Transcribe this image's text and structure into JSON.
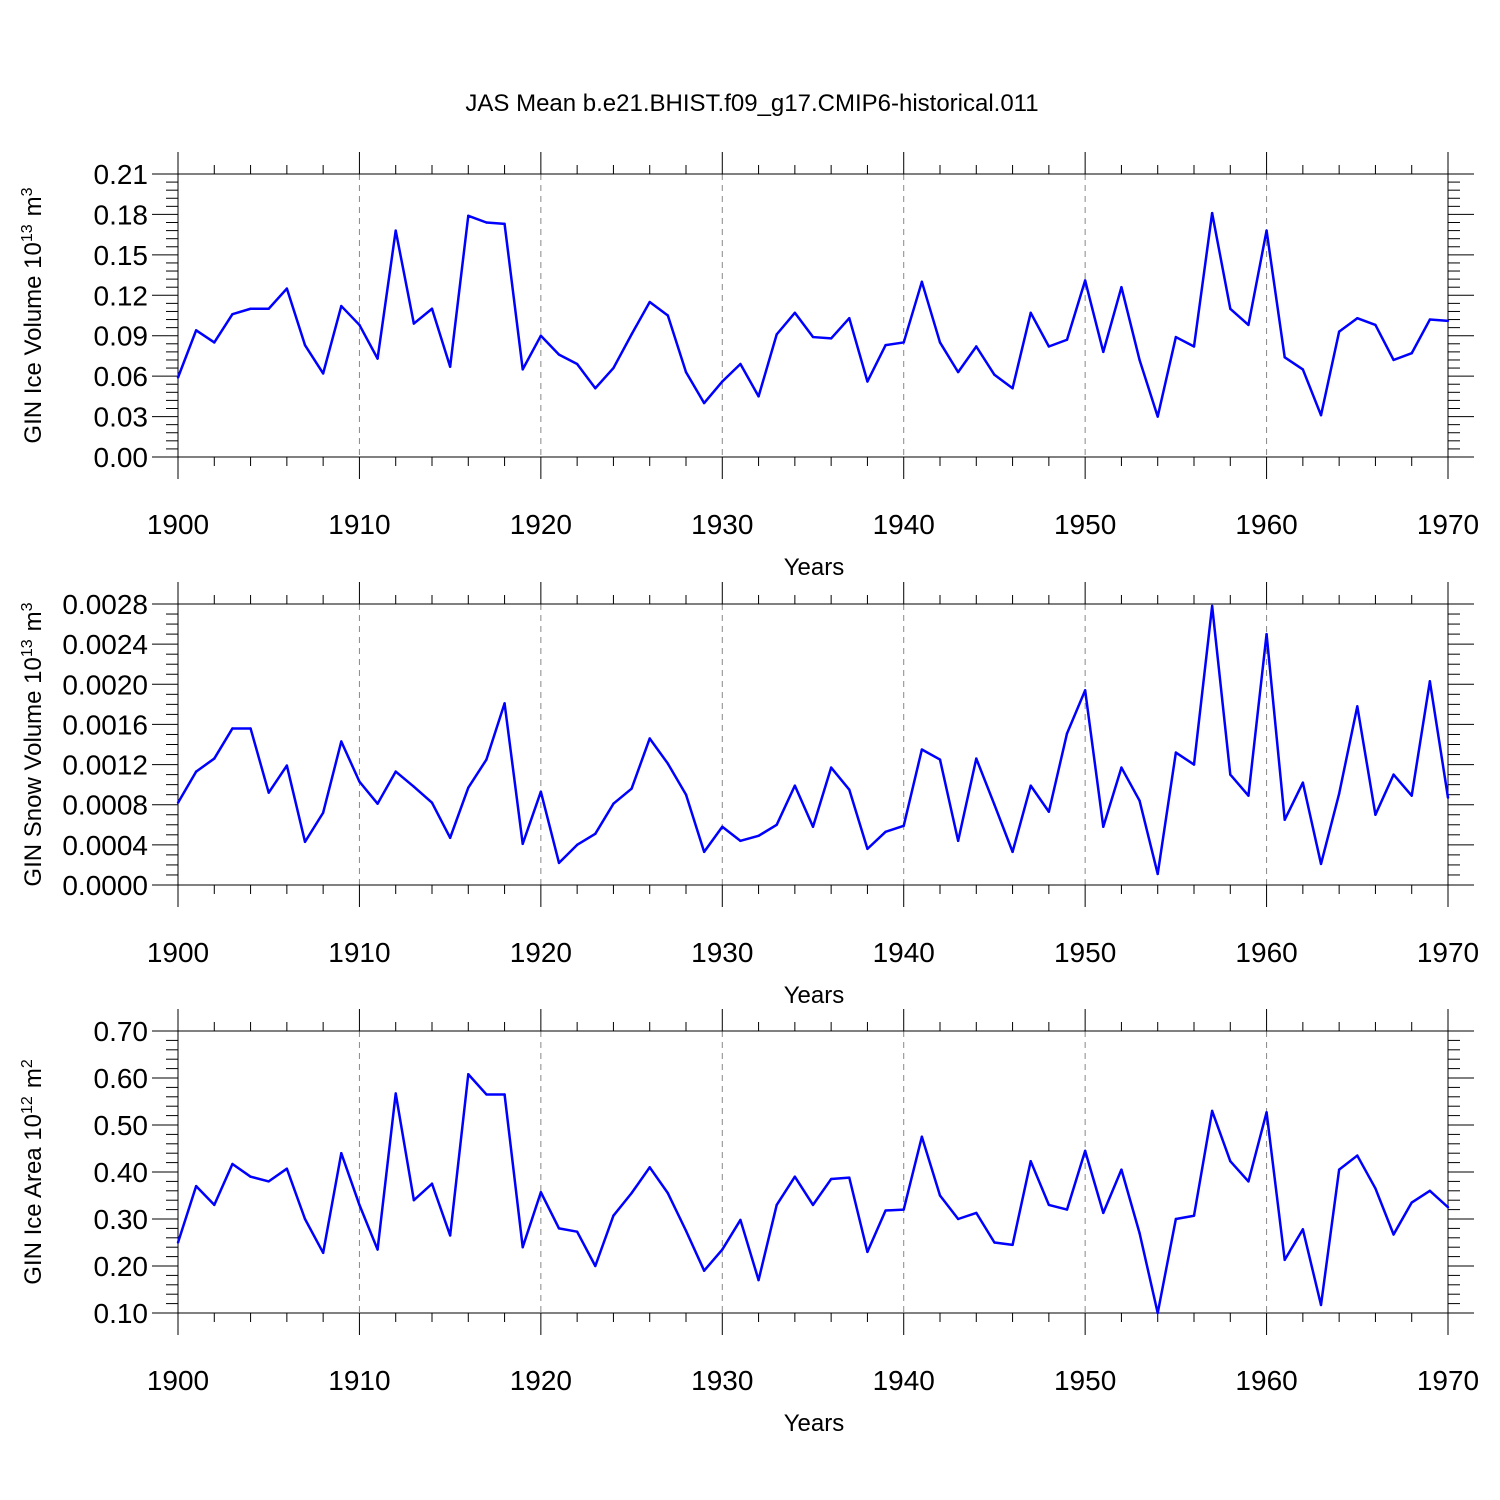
{
  "figure_title": "JAS Mean b.e21.BHIST.f09_g17.CMIP6-historical.011",
  "chart_data": [
    {
      "type": "line",
      "title": "JAS Mean b.e21.BHIST.f09_g17.CMIP6-historical.011",
      "xlabel": "Years",
      "ylabel": "GIN Ice Volume 10",
      "ylabel_exponent": "13",
      "ylabel_unit": "m",
      "ylabel_unit_power": "3",
      "xlim": [
        1900,
        1970
      ],
      "ylim": [
        0,
        0.21
      ],
      "xticks": [
        1900,
        1910,
        1920,
        1930,
        1940,
        1950,
        1960,
        1970
      ],
      "yticks": [
        "0.00",
        "0.03",
        "0.06",
        "0.09",
        "0.12",
        "0.15",
        "0.18",
        "0.21"
      ],
      "grid": "vertical dashed at major x ticks",
      "series_color": "#0000ff",
      "x": [
        1900,
        1901,
        1902,
        1903,
        1904,
        1905,
        1906,
        1907,
        1908,
        1909,
        1910,
        1911,
        1912,
        1913,
        1914,
        1915,
        1916,
        1917,
        1918,
        1919,
        1920,
        1921,
        1922,
        1923,
        1924,
        1925,
        1926,
        1927,
        1928,
        1929,
        1930,
        1931,
        1932,
        1933,
        1934,
        1935,
        1936,
        1937,
        1938,
        1939,
        1940,
        1941,
        1942,
        1943,
        1944,
        1945,
        1946,
        1947,
        1948,
        1949,
        1950,
        1951,
        1952,
        1953,
        1954,
        1955,
        1956,
        1957,
        1958,
        1959,
        1960,
        1961,
        1962,
        1963,
        1964,
        1965,
        1966,
        1967,
        1968,
        1969,
        1970
      ],
      "values": [
        0.059,
        0.094,
        0.085,
        0.106,
        0.11,
        0.11,
        0.125,
        0.083,
        0.062,
        0.112,
        0.098,
        0.073,
        0.168,
        0.099,
        0.11,
        0.067,
        0.179,
        0.174,
        0.173,
        0.065,
        0.09,
        0.076,
        0.069,
        0.051,
        0.066,
        0.091,
        0.115,
        0.105,
        0.063,
        0.04,
        0.056,
        0.069,
        0.045,
        0.091,
        0.107,
        0.089,
        0.088,
        0.103,
        0.056,
        0.083,
        0.085,
        0.13,
        0.085,
        0.063,
        0.082,
        0.061,
        0.051,
        0.107,
        0.082,
        0.087,
        0.131,
        0.078,
        0.126,
        0.072,
        0.03,
        0.089,
        0.082,
        0.181,
        0.11,
        0.098,
        0.168,
        0.074,
        0.065,
        0.031,
        0.093,
        0.103,
        0.098,
        0.072,
        0.077,
        0.102,
        0.101
      ]
    },
    {
      "type": "line",
      "xlabel": "Years",
      "ylabel": "GIN Snow Volume 10",
      "ylabel_exponent": "13",
      "ylabel_unit": "m",
      "ylabel_unit_power": "3",
      "xlim": [
        1900,
        1970
      ],
      "ylim": [
        0,
        0.0028
      ],
      "xticks": [
        1900,
        1910,
        1920,
        1930,
        1940,
        1950,
        1960,
        1970
      ],
      "yticks": [
        "0.0000",
        "0.0004",
        "0.0008",
        "0.0012",
        "0.0016",
        "0.0020",
        "0.0024",
        "0.0028"
      ],
      "grid": "vertical dashed at major x ticks",
      "series_color": "#0000ff",
      "x": [
        1900,
        1901,
        1902,
        1903,
        1904,
        1905,
        1906,
        1907,
        1908,
        1909,
        1910,
        1911,
        1912,
        1913,
        1914,
        1915,
        1916,
        1917,
        1918,
        1919,
        1920,
        1921,
        1922,
        1923,
        1924,
        1925,
        1926,
        1927,
        1928,
        1929,
        1930,
        1931,
        1932,
        1933,
        1934,
        1935,
        1936,
        1937,
        1938,
        1939,
        1940,
        1941,
        1942,
        1943,
        1944,
        1945,
        1946,
        1947,
        1948,
        1949,
        1950,
        1951,
        1952,
        1953,
        1954,
        1955,
        1956,
        1957,
        1958,
        1959,
        1960,
        1961,
        1962,
        1963,
        1964,
        1965,
        1966,
        1967,
        1968,
        1969,
        1970
      ],
      "values": [
        0.00082,
        0.00113,
        0.00126,
        0.00156,
        0.00156,
        0.00092,
        0.00119,
        0.00043,
        0.00072,
        0.00143,
        0.00103,
        0.00081,
        0.00113,
        0.00098,
        0.00082,
        0.00047,
        0.00097,
        0.00125,
        0.00181,
        0.00041,
        0.00093,
        0.00022,
        0.0004,
        0.00051,
        0.00081,
        0.00096,
        0.00146,
        0.00121,
        0.0009,
        0.00033,
        0.00058,
        0.00044,
        0.00049,
        0.0006,
        0.00099,
        0.00058,
        0.00117,
        0.00095,
        0.00036,
        0.00053,
        0.00059,
        0.00135,
        0.00125,
        0.00044,
        0.00126,
        0.0008,
        0.00033,
        0.00099,
        0.00073,
        0.00151,
        0.00194,
        0.00058,
        0.00117,
        0.00084,
        0.00011,
        0.00132,
        0.0012,
        0.00278,
        0.0011,
        0.00089,
        0.0025,
        0.00065,
        0.00102,
        0.00021,
        0.00091,
        0.00178,
        0.0007,
        0.0011,
        0.00089,
        0.00203,
        0.00087
      ]
    },
    {
      "type": "line",
      "xlabel": "Years",
      "ylabel": "GIN Ice Area 10",
      "ylabel_exponent": "12",
      "ylabel_unit": "m",
      "ylabel_unit_power": "2",
      "xlim": [
        1900,
        1970
      ],
      "ylim": [
        0.1,
        0.7
      ],
      "xticks": [
        1900,
        1910,
        1920,
        1930,
        1940,
        1950,
        1960,
        1970
      ],
      "yticks": [
        "0.10",
        "0.20",
        "0.30",
        "0.40",
        "0.50",
        "0.60",
        "0.70"
      ],
      "grid": "vertical dashed at major x ticks",
      "series_color": "#0000ff",
      "x": [
        1900,
        1901,
        1902,
        1903,
        1904,
        1905,
        1906,
        1907,
        1908,
        1909,
        1910,
        1911,
        1912,
        1913,
        1914,
        1915,
        1916,
        1917,
        1918,
        1919,
        1920,
        1921,
        1922,
        1923,
        1924,
        1925,
        1926,
        1927,
        1928,
        1929,
        1930,
        1931,
        1932,
        1933,
        1934,
        1935,
        1936,
        1937,
        1938,
        1939,
        1940,
        1941,
        1942,
        1943,
        1944,
        1945,
        1946,
        1947,
        1948,
        1949,
        1950,
        1951,
        1952,
        1953,
        1954,
        1955,
        1956,
        1957,
        1958,
        1959,
        1960,
        1961,
        1962,
        1963,
        1964,
        1965,
        1966,
        1967,
        1968,
        1969,
        1970
      ],
      "values": [
        0.25,
        0.37,
        0.33,
        0.417,
        0.39,
        0.38,
        0.407,
        0.3,
        0.228,
        0.44,
        0.33,
        0.235,
        0.567,
        0.34,
        0.375,
        0.265,
        0.608,
        0.565,
        0.565,
        0.24,
        0.357,
        0.28,
        0.273,
        0.2,
        0.307,
        0.355,
        0.41,
        0.355,
        0.275,
        0.19,
        0.235,
        0.298,
        0.17,
        0.33,
        0.39,
        0.33,
        0.385,
        0.388,
        0.23,
        0.318,
        0.32,
        0.475,
        0.35,
        0.3,
        0.313,
        0.25,
        0.245,
        0.423,
        0.33,
        0.32,
        0.445,
        0.313,
        0.405,
        0.27,
        0.1,
        0.3,
        0.307,
        0.53,
        0.423,
        0.38,
        0.527,
        0.213,
        0.278,
        0.117,
        0.405,
        0.435,
        0.365,
        0.267,
        0.335,
        0.36,
        0.325
      ]
    }
  ]
}
